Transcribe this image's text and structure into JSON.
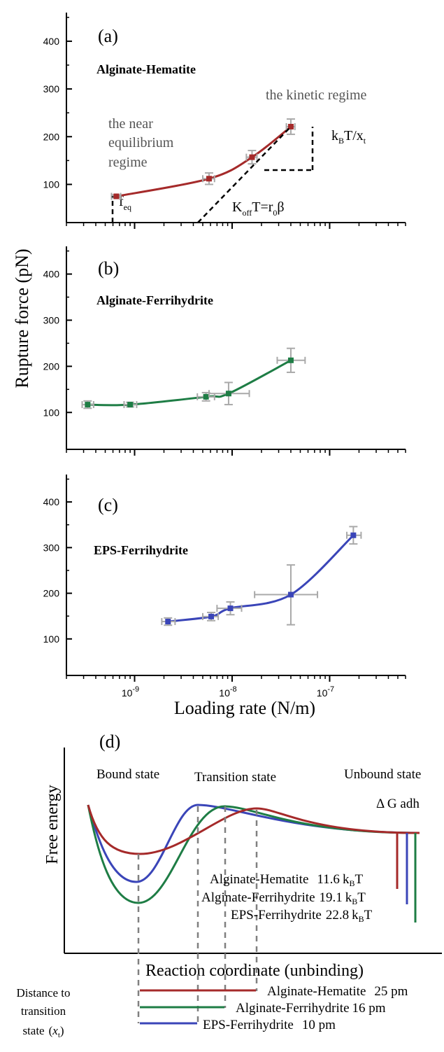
{
  "colors": {
    "hematite": "#a52a2a",
    "ferrihydrite": "#1e7d45",
    "eps": "#3a45b8",
    "errorbar": "#a9a9a9",
    "axis": "#000000"
  },
  "shared": {
    "ylabel": "Rupture force (pN)",
    "xlabel": "Loading rate (N/m)"
  },
  "chart_data": [
    {
      "type": "scatter",
      "panel": "(a)",
      "series_label": "Alginate-Hematite",
      "color_key": "hematite",
      "xscale": "log",
      "xlim": [
        2e-10,
        6e-07
      ],
      "ylim": [
        20,
        460
      ],
      "yticks": [
        100,
        200,
        300,
        400
      ],
      "ytick_labels": [
        "100",
        "200",
        "300",
        "400"
      ],
      "x": [
        6.5e-10,
        5.8e-09,
        1.6e-08,
        4e-08
      ],
      "y": [
        75,
        112,
        157,
        221
      ],
      "x_err": [
        [
          5.8e-10,
          7.2e-10
        ],
        [
          5e-09,
          6.6e-09
        ],
        [
          1.4e-08,
          1.8e-08
        ],
        [
          3.6e-08,
          4.4e-08
        ]
      ],
      "y_err": [
        [
          72,
          78
        ],
        [
          100,
          124
        ],
        [
          143,
          171
        ],
        [
          205,
          237
        ]
      ],
      "annotations": {
        "near_eq_1": "the near",
        "near_eq_2": "equilibrium",
        "near_eq_3": "regime",
        "kinetic": "the kinetic regime",
        "feq_main": "f",
        "feq_sub": "eq",
        "koff_k": "K",
        "koff_sub": "off",
        "koff_rest": "T=r",
        "koff_sub0": "0",
        "koff_beta": "β",
        "kbt_k": "k",
        "kbt_sub": "B",
        "kbt_rest": "T/x",
        "kbt_sub_t": "t"
      }
    },
    {
      "type": "scatter",
      "panel": "(b)",
      "series_label": "Alginate-Ferrihydrite",
      "color_key": "ferrihydrite",
      "xscale": "log",
      "xlim": [
        2e-10,
        6e-07
      ],
      "ylim": [
        20,
        460
      ],
      "yticks": [
        100,
        200,
        300,
        400
      ],
      "ytick_labels": [
        "100",
        "200",
        "300",
        "400"
      ],
      "x": [
        3.3e-10,
        9e-10,
        5.4e-09,
        9.2e-09,
        4e-08
      ],
      "y": [
        117,
        117,
        134,
        141,
        213
      ],
      "x_err": [
        [
          2.9e-10,
          3.8e-10
        ],
        [
          7.8e-10,
          1.05e-09
        ],
        [
          4.4e-09,
          6.6e-09
        ],
        [
          5.8e-09,
          1.5e-08
        ],
        [
          2.9e-08,
          5.6e-08
        ]
      ],
      "y_err": [
        [
          109,
          125
        ],
        [
          112,
          122
        ],
        [
          125,
          143
        ],
        [
          117,
          165
        ],
        [
          187,
          239
        ]
      ]
    },
    {
      "type": "scatter",
      "panel": "(c)",
      "series_label": "EPS-Ferrihydrite",
      "color_key": "eps",
      "xscale": "log",
      "xlim": [
        2e-10,
        6e-07
      ],
      "ylim": [
        20,
        460
      ],
      "yticks": [
        100,
        200,
        300,
        400
      ],
      "ytick_labels": [
        "100",
        "200",
        "300",
        "400"
      ],
      "xticks": [
        1e-09,
        1e-08,
        1e-07
      ],
      "xtick_labels": [
        [
          "10",
          "-9"
        ],
        [
          "10",
          "-8"
        ],
        [
          "10",
          "-7"
        ]
      ],
      "x": [
        2.2e-09,
        6.1e-09,
        9.6e-09,
        4e-08,
        1.75e-07
      ],
      "y": [
        138,
        149,
        167,
        197,
        327
      ],
      "x_err": [
        [
          1.9e-09,
          2.6e-09
        ],
        [
          5e-09,
          7.2e-09
        ],
        [
          7e-09,
          1.25e-08
        ],
        [
          1.7e-08,
          7.5e-08
        ],
        [
          1.5e-07,
          2.1e-07
        ]
      ],
      "y_err": [
        [
          130,
          146
        ],
        [
          140,
          158
        ],
        [
          153,
          181
        ],
        [
          131,
          262
        ],
        [
          308,
          346
        ]
      ]
    },
    {
      "type": "line",
      "panel": "(d)",
      "xlabel": "Reaction coordinate (unbinding)",
      "ylabel": "Free energy",
      "region_labels": [
        "Bound state",
        "Transition state",
        "Unbound state"
      ],
      "delta_g_label": "Δ G adh",
      "series": [
        {
          "name": "Alginate-Hematite",
          "color_key": "hematite",
          "delta_g_value": "11.6",
          "delta_g_unit": "k",
          "delta_g_unit_sub": "B",
          "delta_g_unit_tail": "T",
          "distance_label": "Alginate-Hematite",
          "distance": "25 pm"
        },
        {
          "name": "Alginate-Ferrihydrite",
          "color_key": "ferrihydrite",
          "delta_g_value": "19.1",
          "delta_g_unit": "k",
          "delta_g_unit_sub": "B",
          "delta_g_unit_tail": "T",
          "distance_label": "Alginate-Ferrihydrite",
          "distance": "16 pm"
        },
        {
          "name": "EPS-Ferrihydrite",
          "color_key": "eps",
          "delta_g_value": "22.8",
          "delta_g_unit": "k",
          "delta_g_unit_sub": "B",
          "delta_g_unit_tail": "T",
          "distance_label": "EPS-Ferrihydrite",
          "distance": "10 pm"
        }
      ],
      "distance_title": [
        "Distance to",
        "transition",
        "state"
      ],
      "distance_symbol": "x",
      "distance_symbol_sub": "t"
    }
  ]
}
